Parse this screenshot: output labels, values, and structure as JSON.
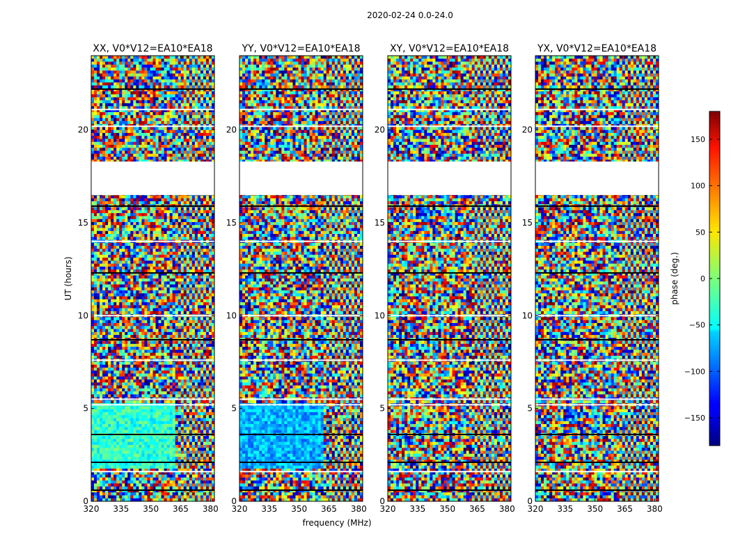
{
  "figure": {
    "suptitle": "2020-02-24 0.0-24.0",
    "ylabel": "UT (hours)",
    "xlabel": "frequency (MHz)"
  },
  "chart_data": {
    "type": "heatmap",
    "title": "2020-02-24 0.0-24.0",
    "xlabel": "frequency (MHz)",
    "ylabel": "UT (hours)",
    "xlim": [
      320,
      382
    ],
    "ylim": [
      0,
      24
    ],
    "x_ticks": [
      320,
      335,
      350,
      365,
      380
    ],
    "y_ticks": [
      0,
      5,
      10,
      15,
      20
    ],
    "panels": [
      {
        "title": "XX, V0*V12=EA10*EA18",
        "pol": "XX"
      },
      {
        "title": "YY, V0*V12=EA10*EA18",
        "pol": "YY"
      },
      {
        "title": "XY, V0*V12=EA10*EA18",
        "pol": "XY"
      },
      {
        "title": "YX, V0*V12=EA10*EA18",
        "pol": "YX"
      }
    ],
    "data_gaps_hours": [
      [
        16.5,
        18.3
      ]
    ],
    "colorbar": {
      "label": "phase (deg.)",
      "range": [
        -180,
        180
      ],
      "ticks": [
        -150,
        -100,
        -50,
        0,
        50,
        100,
        150
      ],
      "tick_labels": [
        "−150",
        "−100",
        "−50",
        "0",
        "50",
        "100",
        "150"
      ],
      "colormap": "jet"
    }
  }
}
